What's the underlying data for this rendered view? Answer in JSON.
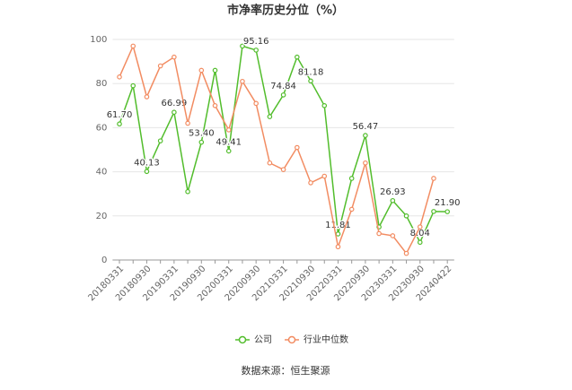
{
  "chart_data": {
    "type": "line",
    "title": "市净率历史分位（%）",
    "categories": [
      "20180331",
      null,
      "20180930",
      null,
      "20190331",
      null,
      "20190930",
      null,
      "20200331",
      null,
      "20200930",
      null,
      "20210331",
      null,
      "20210930",
      null,
      "20220331",
      null,
      "20220930",
      null,
      "20230331",
      null,
      "20230930",
      null,
      "20240422"
    ],
    "series": [
      {
        "name": "公司",
        "color": "#52bd2c",
        "values": [
          61.7,
          79,
          40.13,
          54,
          66.99,
          31,
          53.4,
          86,
          49.41,
          97,
          95.16,
          65,
          74.84,
          92,
          81.18,
          70,
          11.81,
          37,
          56.47,
          15,
          26.93,
          20,
          8.04,
          22,
          21.9
        ],
        "value_labels": [
          "61.70",
          null,
          "40.13",
          null,
          "66.99",
          null,
          "53.40",
          null,
          "49.41",
          null,
          "95.16",
          null,
          "74.84",
          null,
          "81.18",
          null,
          "11.81",
          null,
          "56.47",
          null,
          "26.93",
          null,
          "8.04",
          null,
          "21.90"
        ]
      },
      {
        "name": "行业中位数",
        "color": "#f28c62",
        "values": [
          83,
          97,
          74,
          88,
          92,
          62,
          86,
          70,
          59,
          81,
          71,
          44,
          41,
          51,
          35,
          38,
          6,
          23,
          44,
          12,
          11,
          3,
          15,
          37,
          null
        ]
      }
    ],
    "ylim": [
      0,
      100
    ],
    "yticks": [
      0,
      20,
      40,
      60,
      80,
      100
    ],
    "grid": true,
    "source": "数据来源：恒生聚源"
  }
}
